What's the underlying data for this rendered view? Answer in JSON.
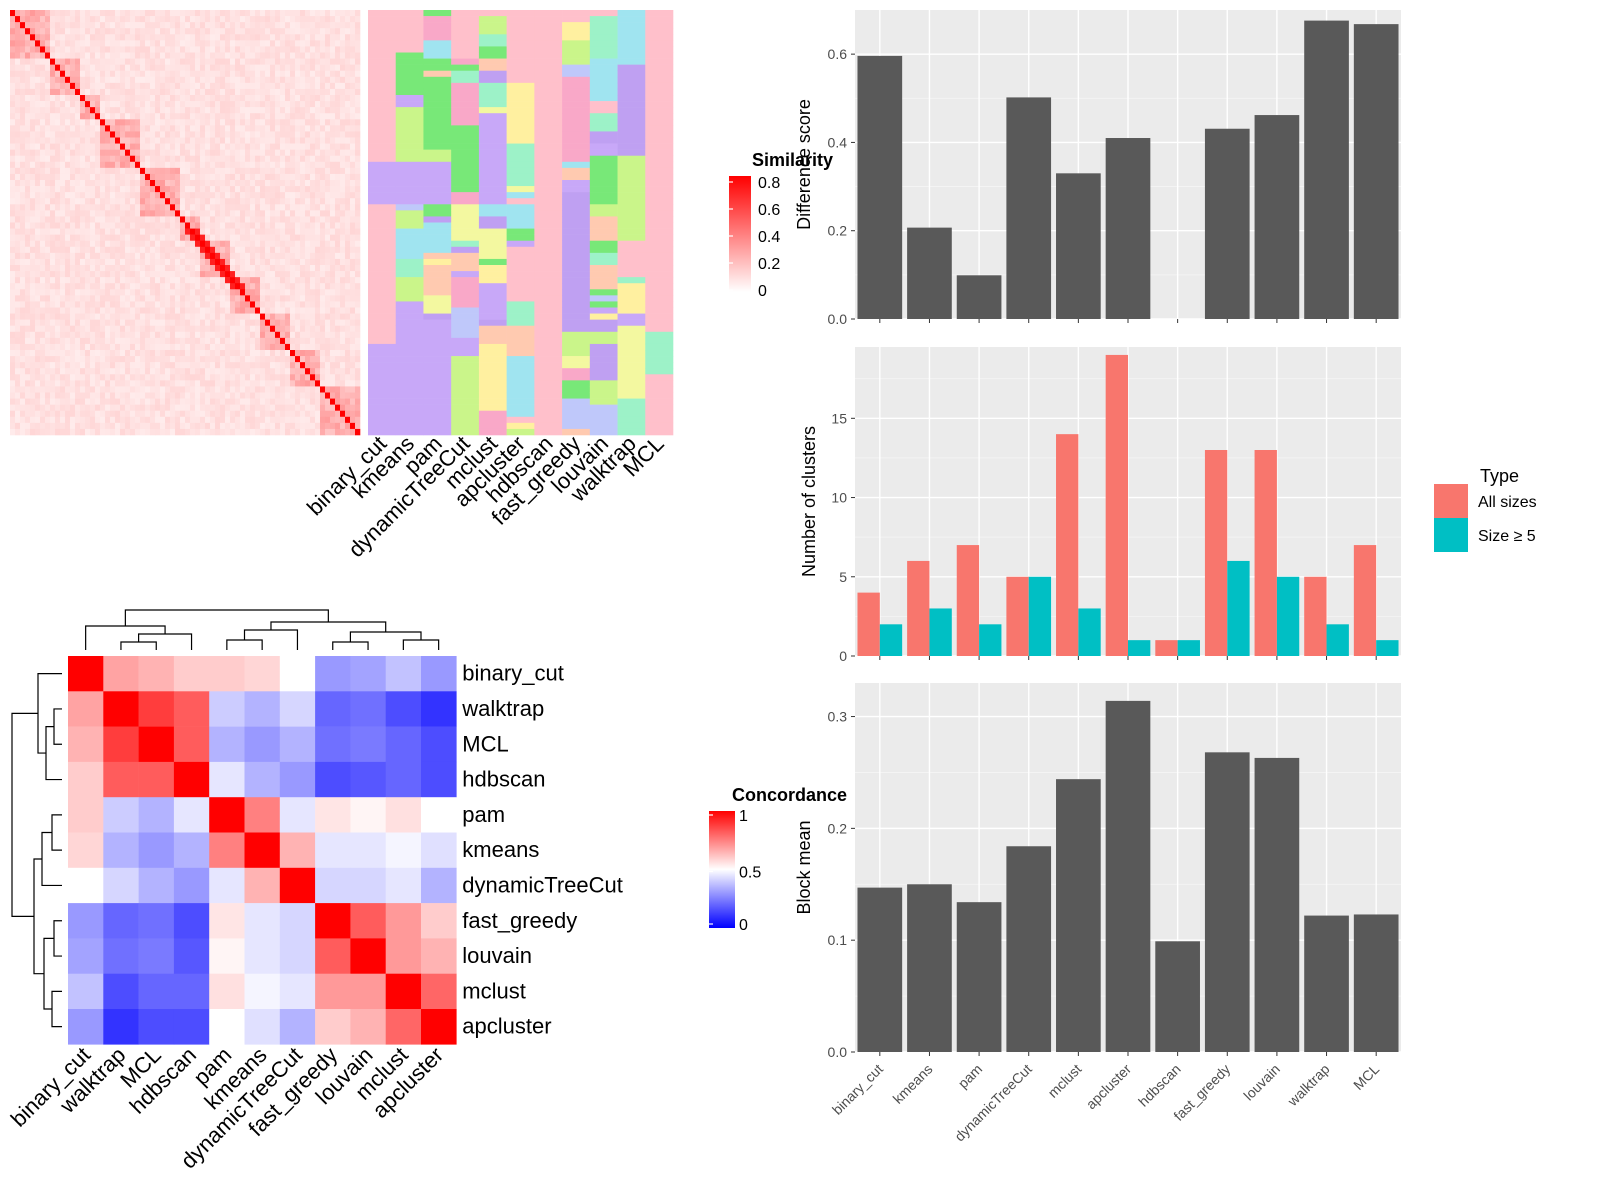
{
  "methods": [
    "binary_cut",
    "kmeans",
    "pam",
    "dynamicTreeCut",
    "mclust",
    "apcluster",
    "hdbscan",
    "fast_greedy",
    "louvain",
    "walktrap",
    "MCL"
  ],
  "similarity_legend": {
    "title": "Similarity",
    "ticks": [
      "0.8",
      "0.6",
      "0.4",
      "0.2",
      "0"
    ]
  },
  "concordance_legend": {
    "title": "Concordance",
    "ticks": [
      "1",
      "0.5",
      "0"
    ]
  },
  "type_legend": {
    "title": "Type",
    "items": [
      "All sizes",
      "Size ≥ 5"
    ],
    "colors": [
      "#F8766D",
      "#00BFC4"
    ]
  },
  "colors": {
    "panel_bg": "#EBEBEB",
    "bar": "#595959",
    "all_sizes": "#F8766D",
    "size_ge_5": "#00BFC4"
  },
  "chart_data": [
    {
      "type": "heatmap",
      "name": "similarity-matrix",
      "legend_title": "Similarity",
      "scale": [
        0,
        0.8
      ],
      "note_values": "term similarity matrix with red diagonal; sub-blocks along diagonal"
    },
    {
      "type": "heatmap",
      "name": "cluster-assignment",
      "columns": [
        "binary_cut",
        "kmeans",
        "pam",
        "dynamicTreeCut",
        "mclust",
        "apcluster",
        "hdbscan",
        "fast_greedy",
        "louvain",
        "walktrap",
        "MCL"
      ]
    },
    {
      "type": "heatmap",
      "name": "concordance",
      "legend_title": "Concordance",
      "scale": [
        0,
        1
      ],
      "rows": [
        "binary_cut",
        "walktrap",
        "MCL",
        "hdbscan",
        "pam",
        "kmeans",
        "dynamicTreeCut",
        "fast_greedy",
        "louvain",
        "mclust",
        "apcluster"
      ],
      "columns": [
        "binary_cut",
        "walktrap",
        "MCL",
        "hdbscan",
        "pam",
        "kmeans",
        "dynamicTreeCut",
        "fast_greedy",
        "louvain",
        "mclust",
        "apcluster"
      ],
      "values": [
        [
          1.0,
          0.68,
          0.65,
          0.6,
          0.6,
          0.58,
          0.5,
          0.3,
          0.32,
          0.38,
          0.3
        ],
        [
          0.68,
          1.0,
          0.88,
          0.82,
          0.4,
          0.35,
          0.42,
          0.2,
          0.22,
          0.15,
          0.1
        ],
        [
          0.65,
          0.88,
          1.0,
          0.82,
          0.35,
          0.3,
          0.35,
          0.22,
          0.24,
          0.2,
          0.15
        ],
        [
          0.6,
          0.82,
          0.82,
          1.0,
          0.45,
          0.35,
          0.3,
          0.15,
          0.17,
          0.2,
          0.15
        ],
        [
          0.6,
          0.4,
          0.35,
          0.45,
          1.0,
          0.75,
          0.45,
          0.55,
          0.52,
          0.56,
          0.5
        ],
        [
          0.58,
          0.35,
          0.3,
          0.35,
          0.75,
          1.0,
          0.65,
          0.45,
          0.45,
          0.48,
          0.44
        ],
        [
          0.5,
          0.42,
          0.35,
          0.3,
          0.45,
          0.65,
          1.0,
          0.42,
          0.42,
          0.45,
          0.35
        ],
        [
          0.3,
          0.2,
          0.22,
          0.15,
          0.55,
          0.45,
          0.42,
          1.0,
          0.82,
          0.7,
          0.6
        ],
        [
          0.32,
          0.22,
          0.24,
          0.17,
          0.52,
          0.45,
          0.42,
          0.82,
          1.0,
          0.7,
          0.65
        ],
        [
          0.38,
          0.15,
          0.2,
          0.2,
          0.56,
          0.48,
          0.45,
          0.7,
          0.7,
          1.0,
          0.8
        ],
        [
          0.3,
          0.1,
          0.15,
          0.15,
          0.5,
          0.44,
          0.35,
          0.6,
          0.65,
          0.8,
          1.0
        ]
      ]
    },
    {
      "type": "bar",
      "name": "difference-score",
      "categories": [
        "binary_cut",
        "kmeans",
        "pam",
        "dynamicTreeCut",
        "mclust",
        "apcluster",
        "hdbscan",
        "fast_greedy",
        "louvain",
        "walktrap",
        "MCL"
      ],
      "values": [
        0.596,
        0.207,
        0.099,
        0.502,
        0.33,
        0.41,
        0.0,
        0.431,
        0.462,
        0.676,
        0.668
      ],
      "ylabel": "Difference score",
      "ylim": [
        0,
        0.7
      ],
      "yticks": [
        0.0,
        0.2,
        0.4,
        0.6
      ],
      "ytick_labels": [
        "0.0",
        "0.2",
        "0.4",
        "0.6"
      ],
      "grid": true
    },
    {
      "type": "bar",
      "name": "number-of-clusters",
      "categories": [
        "binary_cut",
        "kmeans",
        "pam",
        "dynamicTreeCut",
        "mclust",
        "apcluster",
        "hdbscan",
        "fast_greedy",
        "louvain",
        "walktrap",
        "MCL"
      ],
      "series": [
        {
          "name": "All sizes",
          "values": [
            4,
            6,
            7,
            5,
            14,
            19,
            1,
            13,
            13,
            5,
            7
          ]
        },
        {
          "name": "Size ≥ 5",
          "values": [
            2,
            3,
            2,
            5,
            3,
            1,
            1,
            6,
            5,
            2,
            1
          ]
        }
      ],
      "ylabel": "Number of clusters",
      "ylim": [
        0,
        19.5
      ],
      "yticks": [
        0,
        5,
        10,
        15
      ],
      "ytick_labels": [
        "0",
        "5",
        "10",
        "15"
      ],
      "legend": "right",
      "grid": true
    },
    {
      "type": "bar",
      "name": "block-mean",
      "categories": [
        "binary_cut",
        "kmeans",
        "pam",
        "dynamicTreeCut",
        "mclust",
        "apcluster",
        "hdbscan",
        "fast_greedy",
        "louvain",
        "walktrap",
        "MCL"
      ],
      "values": [
        0.147,
        0.15,
        0.134,
        0.184,
        0.244,
        0.314,
        0.099,
        0.268,
        0.263,
        0.122,
        0.123
      ],
      "ylabel": "Block mean",
      "ylim": [
        0,
        0.33
      ],
      "yticks": [
        0.0,
        0.1,
        0.2,
        0.3
      ],
      "ytick_labels": [
        "0.0",
        "0.1",
        "0.2",
        "0.3"
      ],
      "grid": true
    }
  ]
}
